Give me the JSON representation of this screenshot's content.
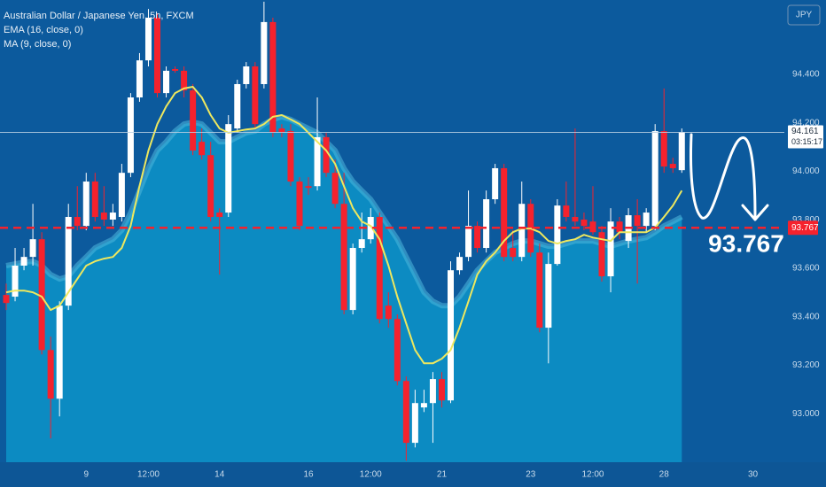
{
  "chart_data": {
    "type": "candlestick",
    "title": "Australian Dollar / Japanese Yen, 5h, FXCM",
    "currency": "JPY",
    "categories": [
      null,
      null,
      null,
      null,
      null,
      null,
      null,
      null,
      null,
      "9",
      null,
      null,
      null,
      null,
      null,
      null,
      "12:00",
      null,
      null,
      null,
      null,
      null,
      null,
      null,
      "14",
      null,
      null,
      null,
      null,
      null,
      null,
      null,
      null,
      null,
      "16",
      null,
      null,
      null,
      null,
      null,
      null,
      "12:00",
      null,
      null,
      null,
      null,
      null,
      null,
      null,
      "21",
      null,
      null,
      null,
      null,
      null,
      null,
      null,
      null,
      null,
      "23",
      null,
      null,
      null,
      null,
      null,
      null,
      "12:00",
      null,
      null,
      null,
      null,
      null,
      null,
      null,
      "28",
      null,
      null,
      null,
      null,
      null,
      null,
      null,
      null,
      null,
      "30",
      null,
      null,
      null
    ],
    "up_color": "#ffffff",
    "down_color": "#f5222d",
    "open": [
      93.49,
      93.483,
      93.611,
      93.647,
      93.72,
      93.263,
      93.062,
      93.446,
      93.812,
      93.775,
      93.958,
      93.83,
      93.801,
      93.812,
      93.994,
      94.305,
      94.458,
      94.634,
      94.323,
      94.422,
      94.415,
      94.334,
      94.122,
      94.067,
      93.83,
      93.83,
      94.177,
      94.36,
      94.433,
      94.36,
      94.616,
      94.177,
      94.166,
      93.958,
      93.939,
      93.939,
      94.141,
      93.994,
      93.866,
      93.428,
      93.684,
      93.72,
      93.812,
      93.446,
      93.391,
      93.135,
      92.88,
      93.026,
      93.044,
      93.143,
      93.055,
      93.592,
      93.647,
      93.775,
      93.684,
      93.885,
      94.013,
      93.684,
      93.647,
      93.866,
      93.665,
      93.355,
      93.618,
      93.859,
      93.812,
      93.801,
      93.793,
      93.749,
      93.567,
      93.793,
      93.713,
      93.819,
      93.775,
      93.775,
      94.166,
      94.031,
      94.005,
      null,
      null,
      null,
      null,
      null,
      null,
      null,
      null,
      null,
      null,
      null
    ],
    "high": [
      93.537,
      93.684,
      93.684,
      93.866,
      93.749,
      93.318,
      93.464,
      93.866,
      93.939,
      93.994,
      93.994,
      93.939,
      93.866,
      94.031,
      94.323,
      94.488,
      94.67,
      94.652,
      94.433,
      94.433,
      94.433,
      94.36,
      94.177,
      94.122,
      93.848,
      94.232,
      94.378,
      94.451,
      94.451,
      94.7,
      94.634,
      94.195,
      94.195,
      93.976,
      93.976,
      94.305,
      94.159,
      94.049,
      93.994,
      93.702,
      93.83,
      93.848,
      93.83,
      93.501,
      93.41,
      93.154,
      93.099,
      93.099,
      93.172,
      93.172,
      93.629,
      93.665,
      93.921,
      93.793,
      93.921,
      94.031,
      94.031,
      93.757,
      93.958,
      93.885,
      93.702,
      93.665,
      93.885,
      93.958,
      94.177,
      93.83,
      93.939,
      93.775,
      93.848,
      93.812,
      93.848,
      93.885,
      93.848,
      94.195,
      94.342,
      94.056,
      94.177,
      null,
      null,
      null,
      null,
      null,
      null,
      null,
      null,
      null,
      null,
      null
    ],
    "low": [
      93.428,
      93.464,
      93.592,
      93.611,
      93.245,
      92.898,
      92.989,
      93.428,
      93.757,
      93.757,
      93.793,
      93.775,
      93.775,
      93.793,
      93.976,
      94.287,
      94.433,
      94.305,
      94.305,
      94.407,
      94.305,
      94.067,
      94.049,
      93.793,
      93.574,
      93.812,
      94.159,
      94.342,
      94.177,
      94.342,
      94.141,
      94.141,
      93.939,
      93.757,
      93.903,
      93.921,
      93.976,
      93.848,
      93.41,
      93.41,
      93.665,
      93.702,
      93.373,
      93.355,
      93.117,
      92.806,
      92.861,
      93.007,
      92.88,
      93.026,
      93.044,
      93.574,
      93.629,
      93.665,
      93.665,
      93.866,
      93.629,
      93.629,
      93.629,
      93.647,
      93.336,
      93.208,
      93.611,
      93.793,
      93.775,
      93.757,
      93.738,
      93.545,
      93.501,
      93.72,
      93.684,
      93.537,
      93.749,
      93.757,
      93.994,
      93.994,
      93.994,
      null,
      null,
      null,
      null,
      null,
      null,
      null,
      null,
      null,
      null,
      null
    ],
    "close": [
      93.457,
      93.611,
      93.647,
      93.72,
      93.263,
      93.062,
      93.446,
      93.812,
      93.775,
      93.958,
      93.812,
      93.801,
      93.83,
      93.994,
      94.305,
      94.458,
      94.634,
      94.323,
      94.415,
      94.415,
      94.334,
      94.086,
      94.067,
      93.812,
      93.812,
      94.195,
      94.36,
      94.433,
      94.195,
      94.616,
      94.159,
      94.159,
      93.958,
      93.775,
      93.932,
      94.141,
      93.994,
      93.866,
      93.428,
      93.684,
      93.72,
      93.812,
      93.391,
      93.391,
      93.135,
      92.88,
      93.044,
      93.044,
      93.143,
      93.055,
      93.592,
      93.647,
      93.775,
      93.684,
      93.885,
      94.013,
      93.647,
      93.647,
      93.866,
      93.665,
      93.355,
      93.618,
      93.859,
      93.812,
      93.793,
      93.775,
      93.749,
      93.567,
      93.793,
      93.749,
      93.819,
      93.775,
      93.83,
      94.166,
      94.02,
      94.013,
      94.161,
      null,
      null,
      null,
      null,
      null,
      null,
      null,
      null,
      null,
      null,
      null
    ],
    "series": [
      {
        "name": "EMA (16, close, 0)",
        "style": "area",
        "color": "#4fb8dc",
        "fill": "#0c8bc2",
        "values": [
          93.611,
          93.618,
          93.625,
          93.629,
          93.611,
          93.574,
          93.556,
          93.567,
          93.611,
          93.647,
          93.684,
          93.702,
          93.72,
          93.757,
          93.83,
          93.921,
          94.013,
          94.086,
          94.122,
          94.166,
          94.195,
          94.203,
          94.195,
          94.159,
          94.122,
          94.122,
          94.141,
          94.159,
          94.166,
          94.195,
          94.214,
          94.225,
          94.214,
          94.195,
          94.177,
          94.159,
          94.122,
          94.086,
          94.013,
          93.958,
          93.921,
          93.885,
          93.83,
          93.775,
          93.72,
          93.647,
          93.574,
          93.501,
          93.464,
          93.446,
          93.446,
          93.483,
          93.537,
          93.592,
          93.629,
          93.665,
          93.684,
          93.702,
          93.713,
          93.713,
          93.702,
          93.691,
          93.691,
          93.702,
          93.713,
          93.713,
          93.713,
          93.702,
          93.691,
          93.702,
          93.713,
          93.72,
          93.727,
          93.749,
          93.775,
          93.793,
          93.812,
          null,
          null,
          null,
          null,
          null,
          null,
          null,
          null,
          null,
          null,
          null
        ]
      },
      {
        "name": "MA (9, close, 0)",
        "style": "line",
        "color": "#eee85e",
        "values": [
          93.501,
          93.508,
          93.508,
          93.501,
          93.483,
          93.428,
          93.446,
          93.501,
          93.556,
          93.611,
          93.629,
          93.64,
          93.647,
          93.684,
          93.775,
          93.939,
          94.086,
          94.195,
          94.268,
          94.323,
          94.342,
          94.349,
          94.305,
          94.232,
          94.177,
          94.159,
          94.166,
          94.173,
          94.177,
          94.195,
          94.225,
          94.232,
          94.214,
          94.195,
          94.159,
          94.122,
          94.086,
          94.031,
          93.939,
          93.848,
          93.793,
          93.775,
          93.72,
          93.611,
          93.483,
          93.373,
          93.263,
          93.208,
          93.208,
          93.227,
          93.263,
          93.355,
          93.464,
          93.574,
          93.629,
          93.665,
          93.713,
          93.749,
          93.764,
          93.764,
          93.749,
          93.713,
          93.702,
          93.713,
          93.72,
          93.738,
          93.727,
          93.72,
          93.713,
          93.749,
          93.749,
          93.749,
          93.749,
          93.768,
          93.812,
          93.859,
          93.921,
          null,
          null,
          null,
          null,
          null,
          null,
          null,
          null,
          null,
          null,
          null
        ]
      }
    ],
    "ylim": [
      92.8,
      94.707
    ],
    "yticks": [
      {
        "value": 93.0,
        "label": "93.000"
      },
      {
        "value": 93.2,
        "label": "93.200"
      },
      {
        "value": 93.4,
        "label": "93.400"
      },
      {
        "value": 93.6,
        "label": "93.600"
      },
      {
        "value": 93.8,
        "label": "93.800"
      },
      {
        "value": 94.0,
        "label": "94.000"
      },
      {
        "value": 94.2,
        "label": "94.200"
      },
      {
        "value": 94.4,
        "label": "94.400"
      }
    ],
    "last_price": {
      "value": 94.161,
      "label": "94.161",
      "countdown": "03:15:17"
    },
    "level": {
      "value": 93.767,
      "label": "93.767",
      "color": "#f5222d"
    }
  }
}
